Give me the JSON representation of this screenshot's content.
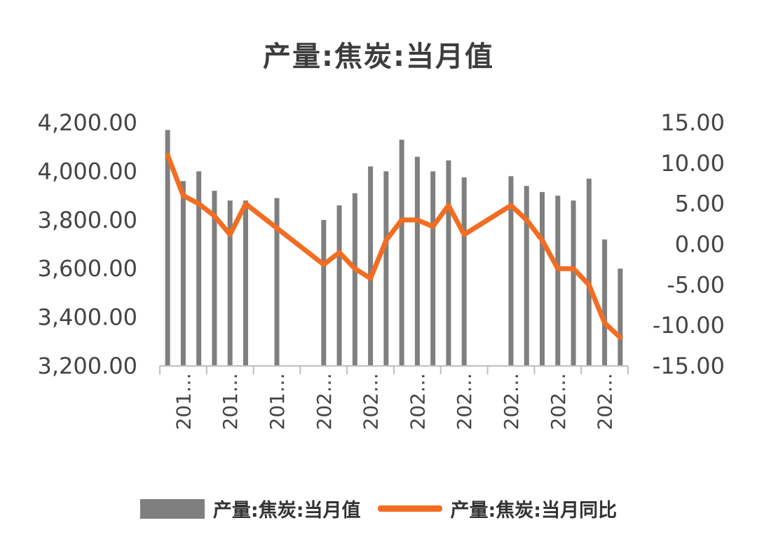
{
  "chart_data": {
    "type": "bar+line",
    "title": "产量:焦炭:当月值",
    "x_tick_labels": [
      "201…",
      "201…",
      "201…",
      "202…",
      "202…",
      "202…",
      "202…",
      "202…",
      "202…",
      "202…"
    ],
    "left_axis": {
      "ylim": [
        3200,
        4200
      ],
      "ticks": [
        "3,200.00",
        "3,400.00",
        "3,600.00",
        "3,800.00",
        "4,000.00",
        "4,200.00"
      ]
    },
    "right_axis": {
      "ylim": [
        -15,
        15
      ],
      "ticks": [
        "-15.00",
        "-10.00",
        "-5.00",
        "0.00",
        "5.00",
        "10.00",
        "15.00"
      ]
    },
    "grid": false,
    "legend_position": "bottom",
    "series": [
      {
        "name": "产量:焦炭:当月值",
        "type": "bar",
        "axis": "left",
        "color": "#7f7f7f",
        "values": [
          4170,
          3960,
          4000,
          3920,
          3880,
          3880,
          null,
          3890,
          null,
          null,
          3800,
          3860,
          3910,
          4020,
          4000,
          4130,
          4060,
          4000,
          4045,
          3975,
          null,
          null,
          3980,
          3940,
          3915,
          3900,
          3880,
          3970,
          3720,
          3600
        ]
      },
      {
        "name": "产量:焦炭:当月同比",
        "type": "line",
        "axis": "right",
        "color": "#f26d21",
        "values": [
          11,
          6,
          5,
          3.5,
          1.2,
          5,
          null,
          2,
          null,
          null,
          -2.5,
          -1,
          -3,
          -4.2,
          0.5,
          3,
          3,
          2.2,
          4.8,
          1.2,
          null,
          null,
          4.8,
          3,
          0.5,
          -3,
          -3,
          -5,
          -9.7,
          -11.5
        ]
      }
    ]
  },
  "legend": {
    "bar_label": "产量:焦炭:当月值",
    "line_label": "产量:焦炭:当月同比"
  }
}
